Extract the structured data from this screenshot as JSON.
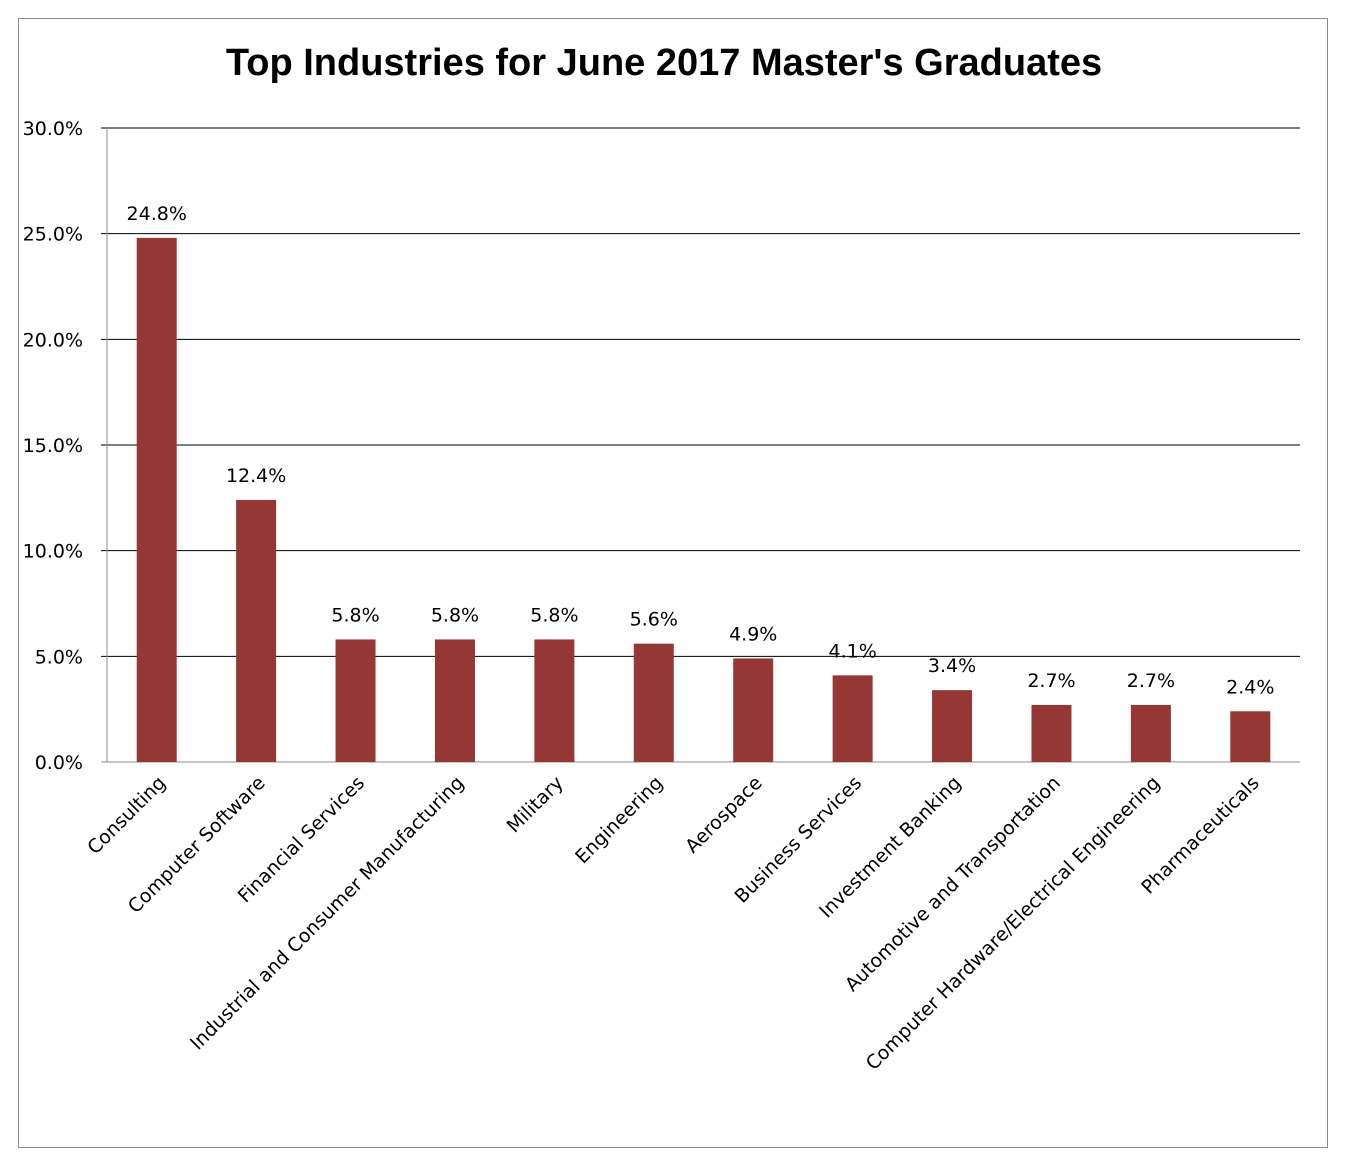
{
  "chart_data": {
    "type": "bar",
    "title": "Top Industries for June 2017 Master's Graduates",
    "categories": [
      "Consulting",
      "Computer Software",
      "Financial Services",
      "Industrial and Consumer Manufacturing",
      "Military",
      "Engineering",
      "Aerospace",
      "Business Services",
      "Investment Banking",
      "Automotive and Transportation",
      "Computer Hardware/Electrical Engineering",
      "Pharmaceuticals"
    ],
    "values": [
      24.8,
      12.4,
      5.8,
      5.8,
      5.8,
      5.6,
      4.9,
      4.1,
      3.4,
      2.7,
      2.7,
      2.4
    ],
    "data_labels": [
      "24.8%",
      "12.4%",
      "5.8%",
      "5.8%",
      "5.8%",
      "5.6%",
      "4.9%",
      "4.1%",
      "3.4%",
      "2.7%",
      "2.7%",
      "2.4%"
    ],
    "y_ticks": [
      0,
      5,
      10,
      15,
      20,
      25,
      30
    ],
    "y_tick_labels": [
      "0.0%",
      "5.0%",
      "10.0%",
      "15.0%",
      "20.0%",
      "25.0%",
      "30.0%"
    ],
    "ylim": [
      0,
      30
    ],
    "grid": true,
    "legend": "none",
    "bar_color": "#953735"
  }
}
